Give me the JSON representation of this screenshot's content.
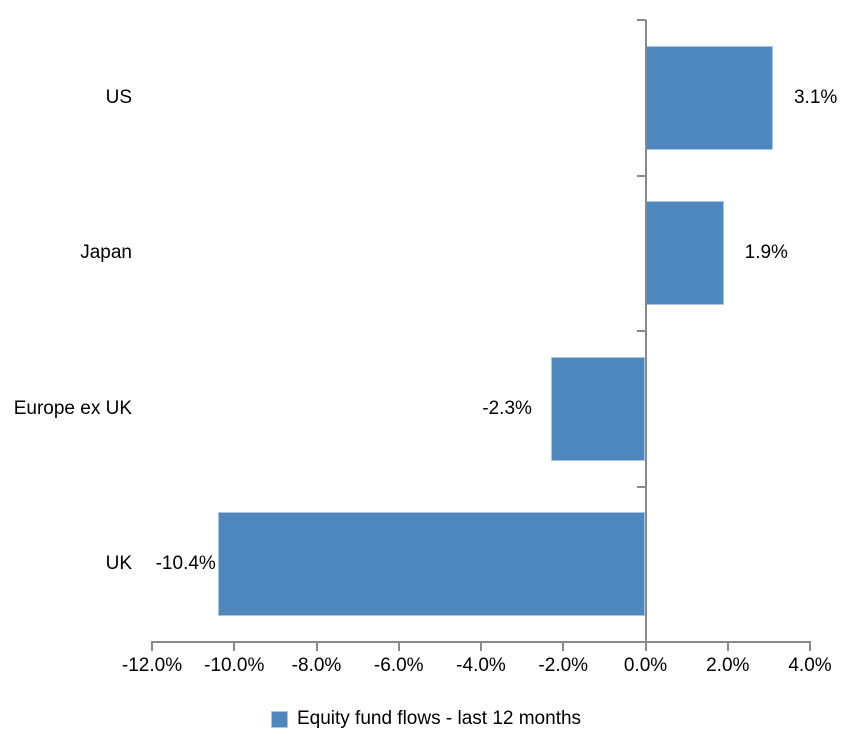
{
  "chart_data": {
    "type": "bar",
    "orientation": "horizontal",
    "title": "",
    "categories": [
      "US",
      "Japan",
      "Europe ex UK",
      "UK"
    ],
    "values": [
      3.1,
      1.9,
      -2.3,
      -10.4
    ],
    "value_labels": [
      "3.1%",
      "1.9%",
      "-2.3%",
      "-10.4%"
    ],
    "series_name": "Equity fund flows - last 12 months",
    "xlabel": "",
    "ylabel": "",
    "xlim": [
      -12,
      4
    ],
    "x_tick_step": 2,
    "x_tick_labels": [
      "-12.0%",
      "-10.0%",
      "-8.0%",
      "-6.0%",
      "-4.0%",
      "-2.0%",
      "0.0%",
      "2.0%",
      "4.0%"
    ],
    "grid": false,
    "legend_position": "bottom-center",
    "colors": {
      "bar_fill": "#4e87bd",
      "bar_border": "#a9c7e3",
      "axis_line": "#898989",
      "text": "#000000",
      "background": "#ffffff"
    }
  }
}
